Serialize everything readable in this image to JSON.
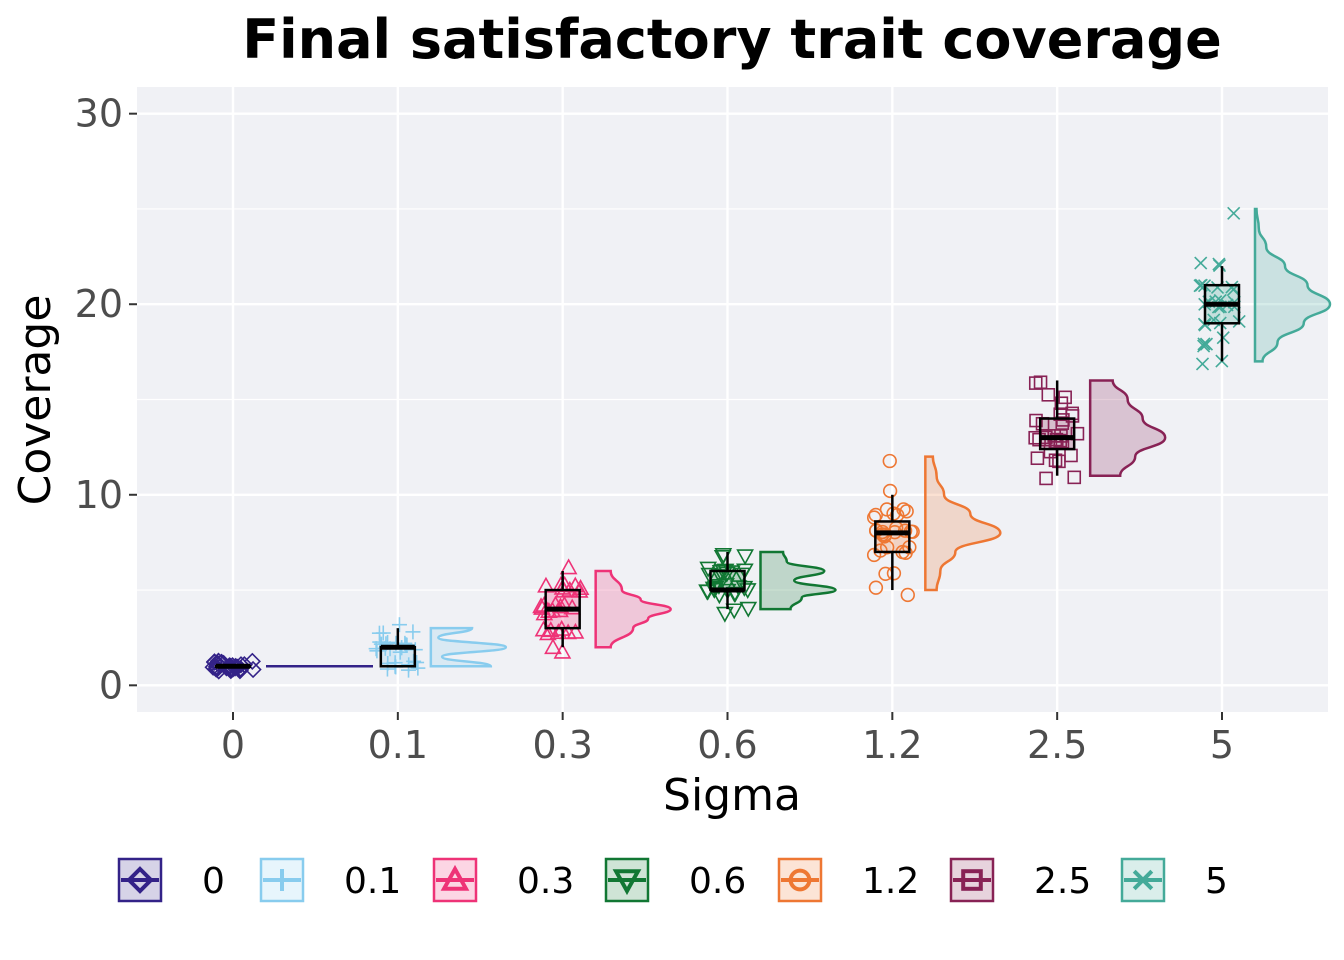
{
  "chart_data": {
    "type": "raincloud",
    "title": "Final satisfactory trait coverage",
    "xlabel": "Sigma",
    "ylabel": "Coverage",
    "ylim": [
      -1.4,
      31.4
    ],
    "yticks": [
      0,
      10,
      20,
      30
    ],
    "categories": [
      "0",
      "0.1",
      "0.3",
      "0.6",
      "1.2",
      "2.5",
      "5"
    ],
    "legend_position": "bottom",
    "grid": true,
    "series": [
      {
        "name": "0",
        "color": "#332288",
        "marker": "diamond",
        "box": {
          "q1": 1,
          "median": 1,
          "q3": 1,
          "whisker_low": 1,
          "whisker_high": 1
        },
        "points": [
          1,
          1,
          1,
          1,
          1,
          1,
          1,
          1,
          1,
          1,
          1,
          1,
          1,
          1,
          1,
          1,
          1,
          1,
          1,
          1,
          1,
          1,
          1,
          1,
          1,
          1,
          1,
          1,
          1,
          1
        ],
        "density": {
          "y": [
            1
          ],
          "d": [
            1
          ]
        }
      },
      {
        "name": "0.1",
        "color": "#88CCEE",
        "marker": "plus",
        "box": {
          "q1": 1,
          "median": 2,
          "q3": 2,
          "whisker_low": 1,
          "whisker_high": 3
        },
        "points": [
          1,
          1,
          1,
          1,
          1,
          1,
          1,
          1,
          1,
          1,
          2,
          2,
          2,
          2,
          2,
          2,
          2,
          2,
          2,
          2,
          2,
          2,
          2,
          2,
          2,
          2,
          3,
          3,
          3,
          3
        ],
        "density": {
          "y": [
            1,
            1.5,
            2,
            2.5,
            3
          ],
          "d": [
            0.8,
            0.15,
            1.0,
            0.1,
            0.55
          ]
        }
      },
      {
        "name": "0.3",
        "color": "#EE3377",
        "marker": "triangle-up",
        "box": {
          "q1": 3,
          "median": 4,
          "q3": 5,
          "whisker_low": 2,
          "whisker_high": 6
        },
        "points": [
          2,
          2,
          3,
          3,
          3,
          3,
          3,
          3,
          3,
          4,
          4,
          4,
          4,
          4,
          4,
          4,
          4,
          4,
          4,
          4,
          5,
          5,
          5,
          5,
          5,
          5,
          5,
          5,
          5,
          6
        ],
        "density": {
          "y": [
            2,
            3,
            3.5,
            4,
            4.5,
            5,
            6
          ],
          "d": [
            0.2,
            0.5,
            0.7,
            1.0,
            0.6,
            0.35,
            0.2
          ]
        }
      },
      {
        "name": "0.6",
        "color": "#117733",
        "marker": "triangle-down",
        "box": {
          "q1": 5,
          "median": 5,
          "q3": 6,
          "whisker_low": 4,
          "whisker_high": 7
        },
        "points": [
          4,
          4,
          4,
          5,
          5,
          5,
          5,
          5,
          5,
          5,
          5,
          5,
          5,
          5,
          5,
          5,
          5,
          6,
          6,
          6,
          6,
          6,
          6,
          6,
          6,
          6,
          6,
          7,
          7,
          7
        ],
        "density": {
          "y": [
            4,
            4.6,
            5,
            5.5,
            6,
            6.5,
            7
          ],
          "d": [
            0.4,
            0.55,
            1.0,
            0.45,
            0.85,
            0.35,
            0.3
          ]
        }
      },
      {
        "name": "1.2",
        "color": "#EE7733",
        "marker": "circle",
        "box": {
          "q1": 7,
          "median": 8,
          "q3": 8.6,
          "whisker_low": 5,
          "whisker_high": 10
        },
        "points": [
          5,
          5,
          6,
          6,
          7,
          7,
          7,
          7,
          7,
          7,
          8,
          8,
          8,
          8,
          8,
          8,
          8,
          8,
          8,
          8,
          8,
          9,
          9,
          9,
          9,
          9,
          9,
          9,
          10,
          12
        ],
        "density": {
          "y": [
            5,
            6,
            7,
            8,
            9,
            10,
            11,
            12
          ],
          "d": [
            0.15,
            0.2,
            0.4,
            1.0,
            0.6,
            0.25,
            0.15,
            0.1
          ]
        }
      },
      {
        "name": "2.5",
        "color": "#882255",
        "marker": "square",
        "box": {
          "q1": 12.4,
          "median": 13,
          "q3": 14,
          "whisker_low": 11,
          "whisker_high": 16
        },
        "points": [
          11,
          11,
          12,
          12,
          12,
          12,
          12,
          13,
          13,
          13,
          13,
          13,
          13,
          13,
          13,
          13,
          13,
          13,
          14,
          14,
          14,
          14,
          14,
          14,
          14,
          15,
          15,
          15,
          16,
          16
        ],
        "density": {
          "y": [
            11,
            12,
            13,
            14,
            15,
            16
          ],
          "d": [
            0.4,
            0.6,
            1.0,
            0.7,
            0.5,
            0.3
          ]
        }
      },
      {
        "name": "5",
        "color": "#44AA99",
        "marker": "x",
        "box": {
          "q1": 19,
          "median": 20,
          "q3": 21,
          "whisker_low": 17,
          "whisker_high": 22
        },
        "points": [
          17,
          17,
          18,
          18,
          18,
          18,
          19,
          19,
          19,
          19,
          19,
          20,
          20,
          20,
          20,
          20,
          20,
          20,
          20,
          20,
          21,
          21,
          21,
          21,
          21,
          21,
          22,
          22,
          22,
          25
        ],
        "density": {
          "y": [
            17,
            18,
            19,
            20,
            21,
            22,
            23,
            24,
            25
          ],
          "d": [
            0.1,
            0.3,
            0.65,
            1.0,
            0.7,
            0.4,
            0.15,
            0.05,
            0.02
          ]
        }
      }
    ]
  }
}
